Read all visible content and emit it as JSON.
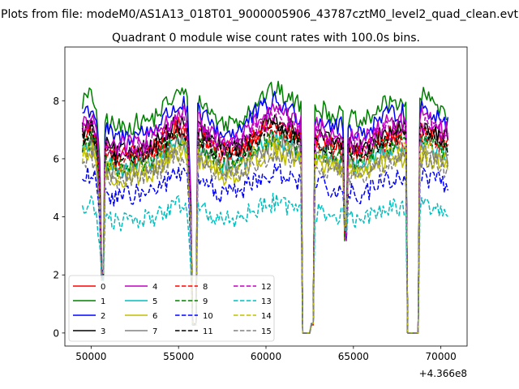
{
  "chart_data": {
    "type": "line",
    "suptitle": "Plots from file: modeM0/AS1A13_018T01_9000005906_43787cztM0_level2_quad_clean.evt",
    "title": "Quadrant 0 module wise count rates with 100.0s bins.",
    "xlabel": "",
    "ylabel": "",
    "x_offset_label": "+4.366e8",
    "xlim": [
      48500,
      71500
    ],
    "ylim": [
      -0.45,
      9.85
    ],
    "xticks": [
      50000,
      55000,
      60000,
      65000,
      70000
    ],
    "xtick_labels": [
      "50000",
      "55000",
      "60000",
      "65000",
      "70000"
    ],
    "yticks": [
      0,
      2,
      4,
      6,
      8
    ],
    "ytick_labels": [
      "0",
      "2",
      "4",
      "6",
      "8"
    ],
    "grid": false,
    "legend_position": "lower-left",
    "legend_columns": 4,
    "x_range": [
      49500,
      70400
    ],
    "x_step": 100,
    "envelope_x": [
      49500,
      50000,
      50300,
      50500,
      50800,
      51500,
      52500,
      53500,
      54500,
      55200,
      55500,
      55700,
      56000,
      56500,
      57500,
      58500,
      59500,
      60500,
      61500,
      62000,
      62700,
      63500,
      64500,
      65500,
      66500,
      67500,
      68100,
      68800,
      69500,
      70400
    ],
    "envelope_y": [
      1.0,
      1.02,
      0.98,
      0.7,
      0.92,
      0.88,
      0.9,
      0.92,
      1.0,
      1.04,
      1.0,
      0.6,
      1.0,
      0.98,
      0.9,
      0.92,
      1.0,
      1.05,
      1.0,
      0.98,
      0.98,
      0.95,
      0.93,
      0.9,
      0.97,
      1.0,
      1.0,
      1.02,
      1.0,
      0.95
    ],
    "gaps": [
      {
        "start": 50600,
        "end": 50750,
        "value": 2.0
      },
      {
        "start": 55800,
        "end": 56000,
        "value": 0.3
      },
      {
        "start": 62100,
        "end": 62500,
        "value": 0.0
      },
      {
        "start": 62600,
        "end": 62700,
        "value": 0.3
      },
      {
        "start": 64500,
        "end": 64600,
        "value": 3.5
      },
      {
        "start": 68100,
        "end": 68700,
        "value": 0.0
      }
    ],
    "series": [
      {
        "name": "0",
        "color": "#ff0000",
        "dash": "solid",
        "level": 6.9
      },
      {
        "name": "1",
        "color": "#008000",
        "dash": "solid",
        "level": 8.0
      },
      {
        "name": "2",
        "color": "#0000ff",
        "dash": "solid",
        "level": 7.6
      },
      {
        "name": "3",
        "color": "#000000",
        "dash": "solid",
        "level": 7.0
      },
      {
        "name": "4",
        "color": "#bf00bf",
        "dash": "solid",
        "level": 7.3
      },
      {
        "name": "5",
        "color": "#00bfbf",
        "dash": "solid",
        "level": 6.4
      },
      {
        "name": "6",
        "color": "#bfbf00",
        "dash": "solid",
        "level": 6.0
      },
      {
        "name": "7",
        "color": "#808080",
        "dash": "solid",
        "level": 6.3
      },
      {
        "name": "8",
        "color": "#ff0000",
        "dash": "dashed",
        "level": 6.7
      },
      {
        "name": "9",
        "color": "#008000",
        "dash": "dashed",
        "level": 6.5
      },
      {
        "name": "10",
        "color": "#0000ff",
        "dash": "dashed",
        "level": 5.3
      },
      {
        "name": "11",
        "color": "#000000",
        "dash": "dashed",
        "level": 6.8
      },
      {
        "name": "12",
        "color": "#bf00bf",
        "dash": "dashed",
        "level": 7.1
      },
      {
        "name": "13",
        "color": "#00bfbf",
        "dash": "dashed",
        "level": 4.3
      },
      {
        "name": "14",
        "color": "#bfbf00",
        "dash": "dashed",
        "level": 6.2
      },
      {
        "name": "15",
        "color": "#808080",
        "dash": "dashed",
        "level": 5.9
      }
    ]
  }
}
